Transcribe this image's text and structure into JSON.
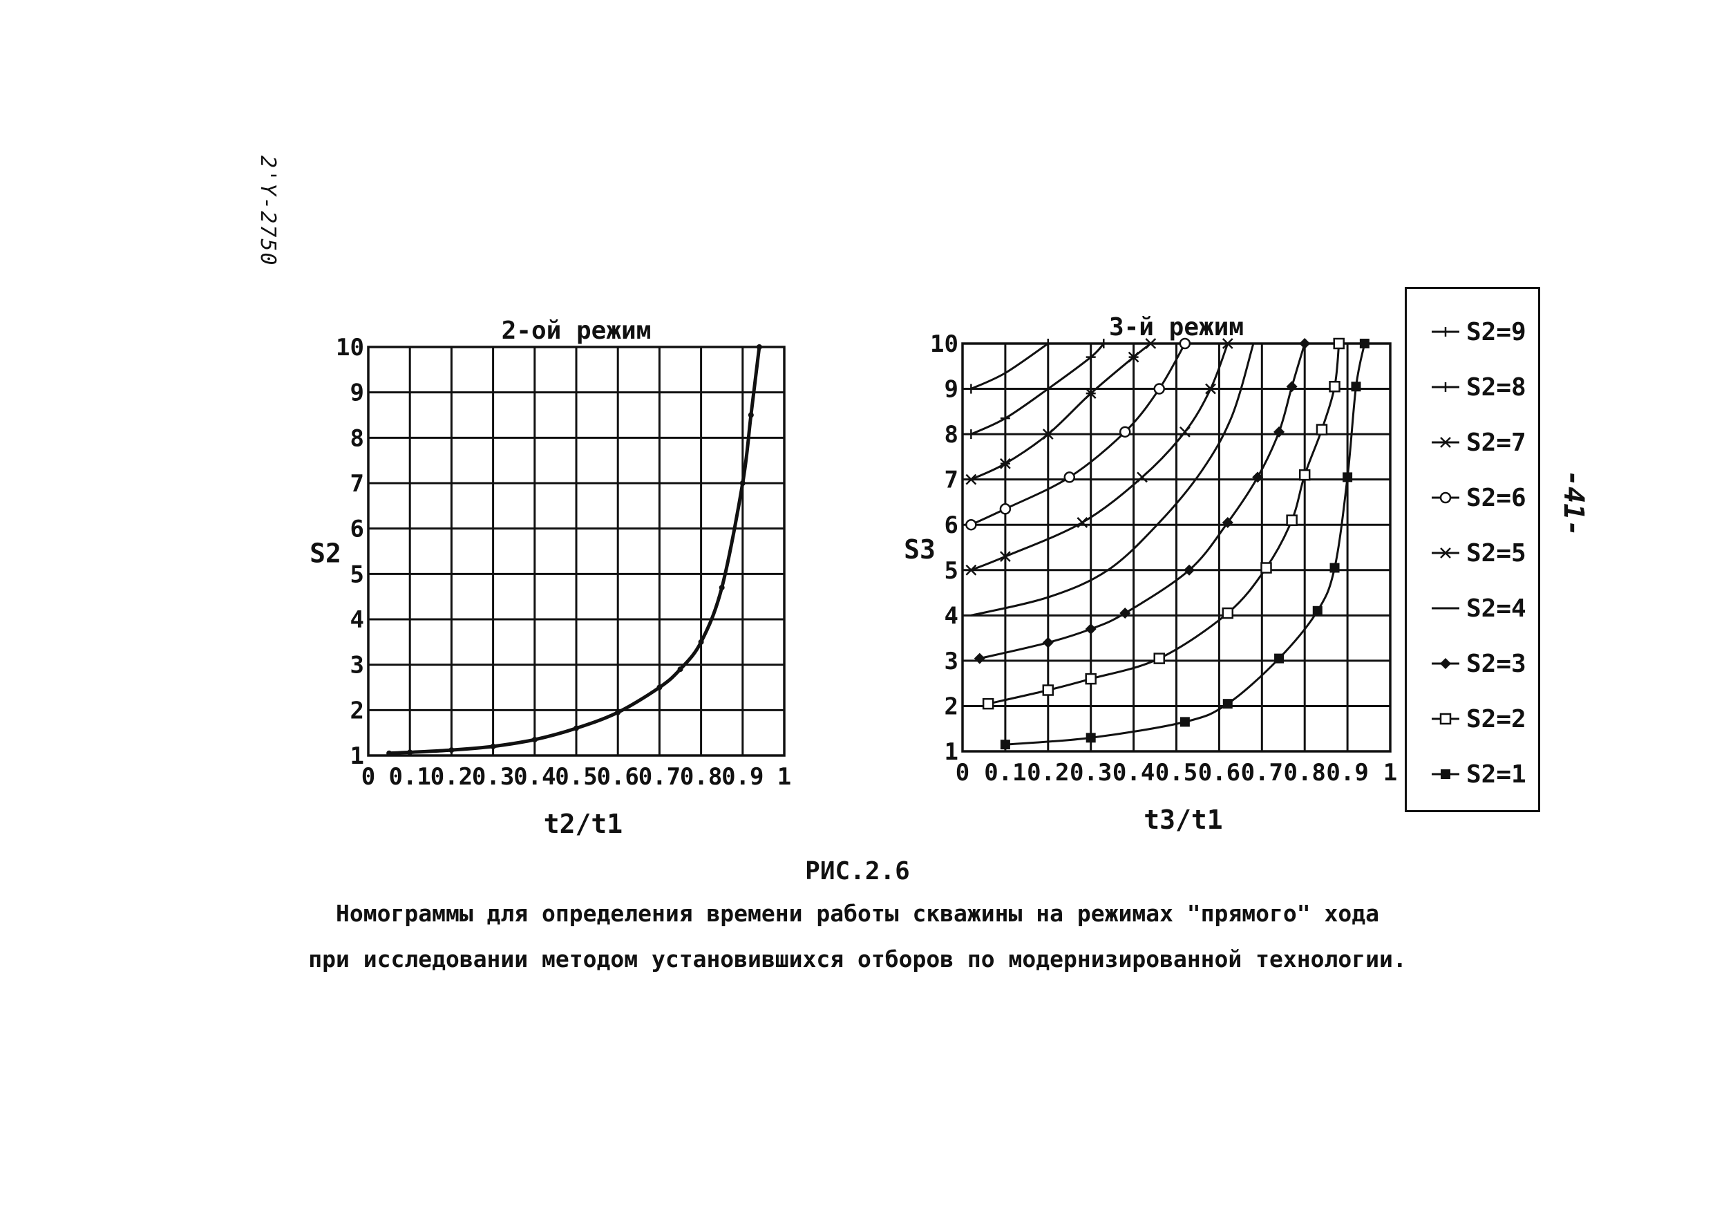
{
  "margin_note": "2'Y-2750",
  "page_number": "-41-",
  "figure_label": "РИС.2.6",
  "caption_line1": "Номограммы для определения времени работы скважины на режимах \"прямого\" хода",
  "caption_line2": "при исследовании методом установившихся отборов по модернизированной технологии.",
  "chart_data": [
    {
      "type": "line",
      "title": "2-ой режим",
      "xlabel": "t2/t1",
      "ylabel": "S2",
      "xlim": [
        0,
        1
      ],
      "ylim": [
        1,
        10
      ],
      "x_ticks": [
        "0",
        "0.1",
        "0.2",
        "0.3",
        "0.4",
        "0.5",
        "0.6",
        "0.7",
        "0.8",
        "0.9",
        "1"
      ],
      "y_ticks": [
        "1",
        "2",
        "3",
        "4",
        "5",
        "6",
        "7",
        "8",
        "9",
        "10"
      ],
      "grid": true,
      "series": [
        {
          "color": "#111111",
          "x": [
            0.05,
            0.1,
            0.2,
            0.3,
            0.4,
            0.5,
            0.6,
            0.7,
            0.75,
            0.8,
            0.85,
            0.9,
            0.92,
            0.94
          ],
          "y": [
            1.05,
            1.07,
            1.12,
            1.2,
            1.35,
            1.6,
            1.95,
            2.5,
            2.9,
            3.5,
            4.7,
            7.0,
            8.5,
            10.0
          ]
        }
      ]
    },
    {
      "type": "line",
      "title": "3-й режим",
      "xlabel": "t3/t1",
      "ylabel": "S3",
      "xlim": [
        0,
        1
      ],
      "ylim": [
        1,
        10
      ],
      "x_ticks": [
        "0",
        "0.1",
        "0.2",
        "0.3",
        "0.4",
        "0.5",
        "0.6",
        "0.7",
        "0.8",
        "0.9",
        "1"
      ],
      "y_ticks": [
        "1",
        "2",
        "3",
        "4",
        "5",
        "6",
        "7",
        "8",
        "9",
        "10"
      ],
      "grid": true,
      "legend": "right",
      "series": [
        {
          "name": "S2=9",
          "marker": "tick",
          "x": [
            0.02,
            0.1,
            0.2
          ],
          "y": [
            9.0,
            9.35,
            10.0
          ]
        },
        {
          "name": "S2=8",
          "marker": "plus",
          "x": [
            0.02,
            0.1,
            0.2,
            0.3,
            0.33
          ],
          "y": [
            8.0,
            8.35,
            9.0,
            9.7,
            10.0
          ]
        },
        {
          "name": "S2=7",
          "marker": "star",
          "x": [
            0.02,
            0.1,
            0.2,
            0.3,
            0.4,
            0.44
          ],
          "y": [
            7.0,
            7.35,
            8.0,
            8.9,
            9.7,
            10.0
          ]
        },
        {
          "name": "S2=6",
          "marker": "circle-open",
          "x": [
            0.02,
            0.1,
            0.25,
            0.38,
            0.46,
            0.52
          ],
          "y": [
            6.0,
            6.35,
            7.05,
            8.05,
            9.0,
            10.0
          ]
        },
        {
          "name": "S2=5",
          "marker": "cross",
          "x": [
            0.02,
            0.1,
            0.28,
            0.42,
            0.52,
            0.58,
            0.62
          ],
          "y": [
            5.0,
            5.3,
            6.05,
            7.05,
            8.05,
            9.0,
            10.0
          ]
        },
        {
          "name": "S2=4",
          "marker": "none",
          "x": [
            0.02,
            0.2,
            0.34,
            0.46,
            0.56,
            0.63,
            0.68
          ],
          "y": [
            4.0,
            4.4,
            5.0,
            6.05,
            7.2,
            8.4,
            10.0
          ]
        },
        {
          "name": "S2=3",
          "marker": "diamond-filled",
          "x": [
            0.04,
            0.2,
            0.3,
            0.38,
            0.53,
            0.62,
            0.69,
            0.74,
            0.77,
            0.8
          ],
          "y": [
            3.05,
            3.4,
            3.7,
            4.05,
            5.0,
            6.05,
            7.05,
            8.05,
            9.05,
            10.0
          ]
        },
        {
          "name": "S2=2",
          "marker": "square-open",
          "x": [
            0.06,
            0.2,
            0.3,
            0.46,
            0.62,
            0.71,
            0.77,
            0.8,
            0.84,
            0.87,
            0.88
          ],
          "y": [
            2.05,
            2.35,
            2.6,
            3.05,
            4.05,
            5.05,
            6.1,
            7.1,
            8.1,
            9.05,
            10.0
          ]
        },
        {
          "name": "S2=1",
          "marker": "square-filled",
          "x": [
            0.1,
            0.3,
            0.52,
            0.62,
            0.74,
            0.83,
            0.87,
            0.9,
            0.92,
            0.94
          ],
          "y": [
            1.15,
            1.3,
            1.65,
            2.05,
            3.05,
            4.1,
            5.05,
            7.05,
            9.05,
            10.0
          ]
        }
      ]
    }
  ]
}
